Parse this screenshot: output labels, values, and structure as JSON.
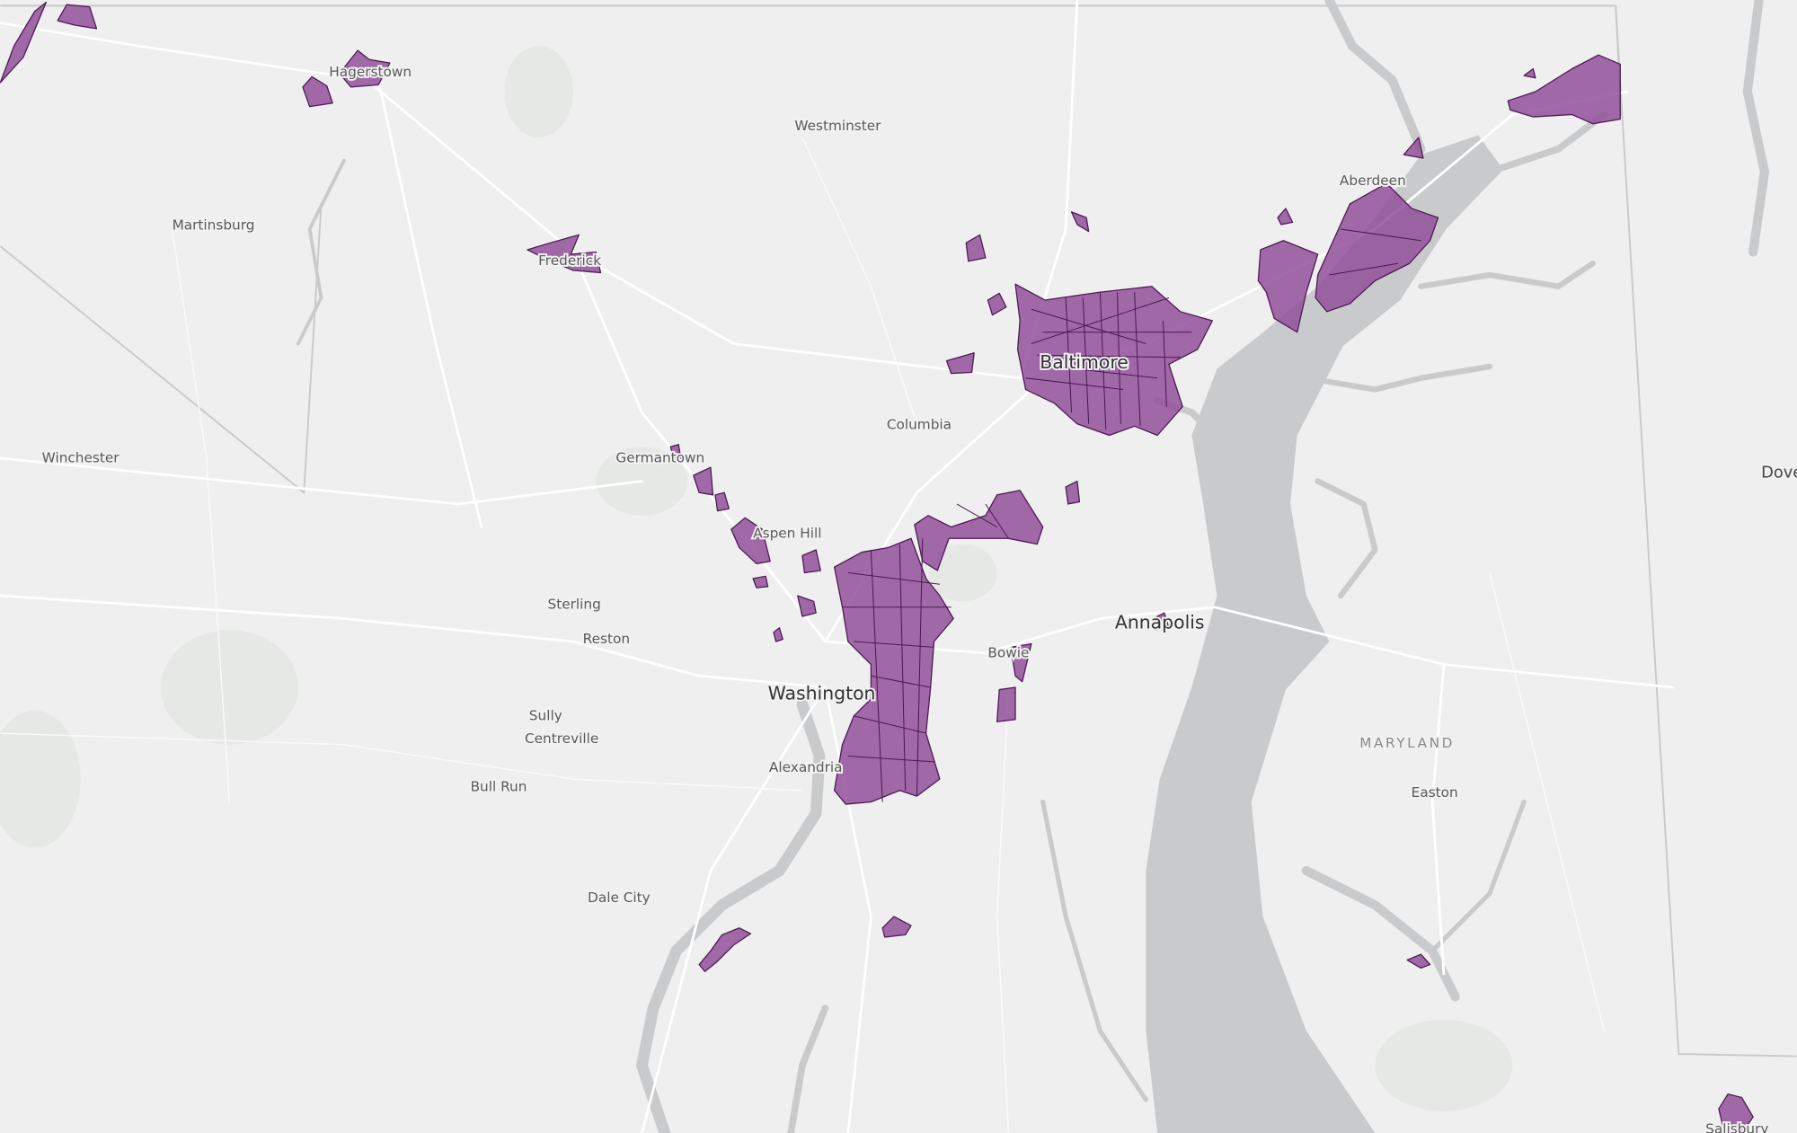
{
  "places": [
    "Hagerstown",
    "Westminster",
    "Aberdeen",
    "Martinsburg",
    "Frederick",
    "Baltimore",
    "Columbia",
    "Germantown",
    "Winchester",
    "Aspen Hill",
    "Sterling",
    "Reston",
    "Annapolis",
    "Bowie",
    "Washington",
    "Sully",
    "Centreville",
    "Alexandria",
    "Bull Run",
    "MARYLAND",
    "Easton",
    "Dale City",
    "Dover",
    "Salisbury"
  ]
}
